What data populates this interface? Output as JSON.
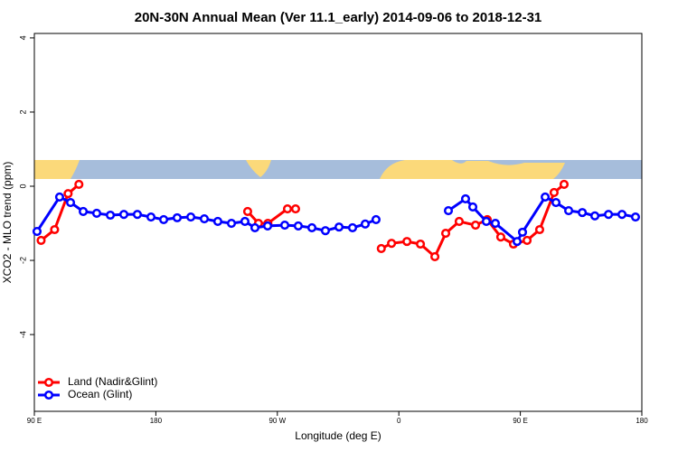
{
  "chart_data": {
    "type": "line",
    "title": "20N-30N Annual Mean (Ver 11.1_early)   2014-09-06 to 2018-12-31",
    "x_label": "Longitude (deg E)",
    "y_label": "XCO2 - MLO trend (ppm)",
    "xlim": [
      90,
      540
    ],
    "ylim": [
      -6.07,
      4.12
    ],
    "xticks": [
      {
        "value": 90,
        "label": "90 E"
      },
      180,
      {
        "value": 270,
        "label": "90 W"
      },
      {
        "value": 360,
        "label": "0"
      },
      {
        "value": 450,
        "label": "90 E"
      },
      {
        "value": 540,
        "label": "180"
      }
    ],
    "yticks": [
      -4,
      -2,
      0,
      2,
      4
    ],
    "legend": "bottom-left",
    "series": [
      {
        "name": "Land (Nadir&Glint)",
        "color": "#ff0000",
        "x": [
          95,
          105,
          115,
          123,
          null,
          248,
          256,
          263,
          277.5,
          283.5,
          null,
          347,
          354.6,
          366,
          376,
          386.7,
          394.7,
          404.7,
          416.8,
          425.5,
          435.5,
          444.9,
          455,
          464.3,
          475,
          482.4
        ],
        "values": [
          -1.46,
          -1.17,
          -0.2,
          0.05,
          null,
          -0.68,
          -1.0,
          -1.0,
          -0.61,
          -0.61,
          null,
          -1.68,
          -1.54,
          -1.49,
          -1.56,
          -1.9,
          -1.27,
          -0.95,
          -1.05,
          -0.9,
          -1.37,
          -1.56,
          -1.46,
          -1.17,
          -0.17,
          0.05
        ]
      },
      {
        "name": "Ocean (Glint)",
        "color": "#0000ff",
        "x": [
          92,
          108.7,
          116.8,
          126.2,
          136.2,
          146.3,
          156.3,
          166.3,
          176.4,
          185.8,
          195.8,
          205.9,
          215.9,
          225.9,
          236,
          246,
          253.4,
          262.8,
          275.5,
          285.5,
          295.6,
          305.6,
          315.7,
          325.7,
          335.1,
          343.1,
          null,
          396.7,
          409.4,
          414.8,
          424.8,
          431.5,
          447.6,
          451.6,
          468.4,
          476.4,
          485.8,
          495.9,
          505.2,
          515.3,
          525.3,
          535.3
        ],
        "values": [
          -1.22,
          -0.29,
          -0.44,
          -0.68,
          -0.73,
          -0.78,
          -0.76,
          -0.76,
          -0.83,
          -0.9,
          -0.85,
          -0.83,
          -0.88,
          -0.95,
          -1.0,
          -0.95,
          -1.12,
          -1.07,
          -1.05,
          -1.07,
          -1.12,
          -1.2,
          -1.1,
          -1.12,
          -1.02,
          -0.9,
          null,
          -0.66,
          -0.34,
          -0.56,
          -0.95,
          -1.0,
          -1.49,
          -1.24,
          -0.29,
          -0.44,
          -0.66,
          -0.71,
          -0.8,
          -0.76,
          -0.76,
          -0.83
        ]
      }
    ]
  }
}
